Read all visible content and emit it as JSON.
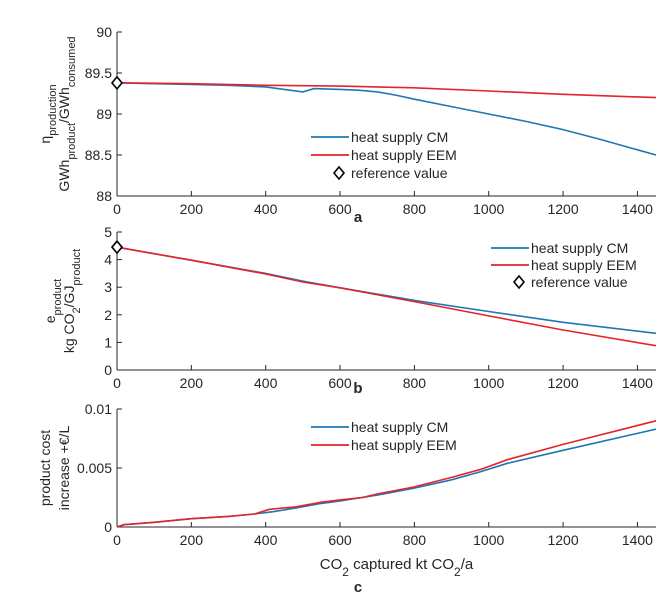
{
  "colors": {
    "series_cm": "#0072BD",
    "series_eem": "#D95319",
    "red": "#E3242B",
    "blue": "#1f77b4",
    "axis": "#262626"
  },
  "chart_data": [
    {
      "type": "line",
      "panel": "a",
      "ylabel_lines": [
        "η_production",
        "GWh_product/GWh_consumed"
      ],
      "xlim": [
        0,
        1450
      ],
      "ylim": [
        88,
        90
      ],
      "xticks": [
        0,
        200,
        400,
        600,
        800,
        1000,
        1200,
        1400
      ],
      "yticks": [
        88,
        88.5,
        89,
        89.5,
        90
      ],
      "ytick_labels": [
        "88",
        "88.5",
        "89",
        "89.5",
        "90"
      ],
      "legend_position": "center-right",
      "series": [
        {
          "name": "heat supply CM",
          "color": "#1f77b4",
          "x": [
            0,
            100,
            200,
            300,
            400,
            450,
            500,
            530,
            600,
            650,
            700,
            750,
            800,
            900,
            1000,
            1100,
            1200,
            1300,
            1450
          ],
          "y": [
            89.38,
            89.37,
            89.36,
            89.35,
            89.33,
            89.3,
            89.27,
            89.31,
            89.3,
            89.29,
            89.27,
            89.23,
            89.18,
            89.09,
            89.0,
            88.91,
            88.81,
            88.69,
            88.5
          ]
        },
        {
          "name": "heat supply EEM",
          "color": "#E3242B",
          "x": [
            0,
            200,
            400,
            600,
            800,
            1000,
            1200,
            1450
          ],
          "y": [
            89.38,
            89.37,
            89.35,
            89.34,
            89.32,
            89.28,
            89.24,
            89.2
          ]
        },
        {
          "name": "reference value",
          "marker": "diamond",
          "x": [
            0
          ],
          "y": [
            89.38
          ]
        }
      ]
    },
    {
      "type": "line",
      "panel": "b",
      "ylabel_lines": [
        "e_product",
        "kg CO_2/GJ_product"
      ],
      "xlim": [
        0,
        1450
      ],
      "ylim": [
        0,
        5
      ],
      "xticks": [
        0,
        200,
        400,
        600,
        800,
        1000,
        1200,
        1400
      ],
      "yticks": [
        0,
        1,
        2,
        3,
        4,
        5
      ],
      "ytick_labels": [
        "0",
        "1",
        "2",
        "3",
        "4",
        "5"
      ],
      "legend_position": "top-right",
      "series": [
        {
          "name": "heat supply CM",
          "color": "#1f77b4",
          "x": [
            0,
            200,
            400,
            500,
            600,
            800,
            1000,
            1200,
            1450
          ],
          "y": [
            4.45,
            3.98,
            3.5,
            3.22,
            2.98,
            2.52,
            2.12,
            1.73,
            1.33
          ]
        },
        {
          "name": "heat supply EEM",
          "color": "#E3242B",
          "x": [
            0,
            200,
            400,
            500,
            600,
            800,
            1000,
            1200,
            1450
          ],
          "y": [
            4.45,
            3.98,
            3.48,
            3.19,
            2.98,
            2.48,
            1.96,
            1.45,
            0.88
          ]
        },
        {
          "name": "reference value",
          "marker": "diamond",
          "x": [
            0
          ],
          "y": [
            4.45
          ]
        }
      ]
    },
    {
      "type": "line",
      "panel": "c",
      "ylabel_lines": [
        "product cost",
        "increase +€/L"
      ],
      "xlabel": "CO_2 captured kt CO_2/a",
      "xlim": [
        0,
        1450
      ],
      "ylim": [
        0,
        0.01
      ],
      "xticks": [
        0,
        200,
        400,
        600,
        800,
        1000,
        1200,
        1400
      ],
      "yticks": [
        0,
        0.005,
        0.01
      ],
      "ytick_labels": [
        "0",
        "0.005",
        "0.01"
      ],
      "legend_position": "top-center",
      "series": [
        {
          "name": "heat supply CM",
          "color": "#1f77b4",
          "x": [
            0,
            20,
            100,
            200,
            300,
            370,
            420,
            480,
            550,
            600,
            660,
            700,
            800,
            900,
            980,
            1050,
            1200,
            1450
          ],
          "y": [
            0.0,
            0.0002,
            0.0004,
            0.0007,
            0.0009,
            0.0011,
            0.0013,
            0.0016,
            0.002,
            0.0022,
            0.0025,
            0.0027,
            0.0033,
            0.004,
            0.0047,
            0.0054,
            0.0065,
            0.0083
          ]
        },
        {
          "name": "heat supply EEM",
          "color": "#E3242B",
          "x": [
            0,
            20,
            100,
            200,
            300,
            370,
            410,
            480,
            550,
            600,
            660,
            700,
            800,
            900,
            980,
            1050,
            1200,
            1450
          ],
          "y": [
            0.0,
            0.0002,
            0.0004,
            0.0007,
            0.0009,
            0.0011,
            0.0015,
            0.0017,
            0.0021,
            0.0023,
            0.0025,
            0.0028,
            0.0034,
            0.0042,
            0.0049,
            0.0057,
            0.007,
            0.009
          ]
        }
      ]
    }
  ],
  "panel_letters": [
    "a",
    "b",
    "c"
  ]
}
